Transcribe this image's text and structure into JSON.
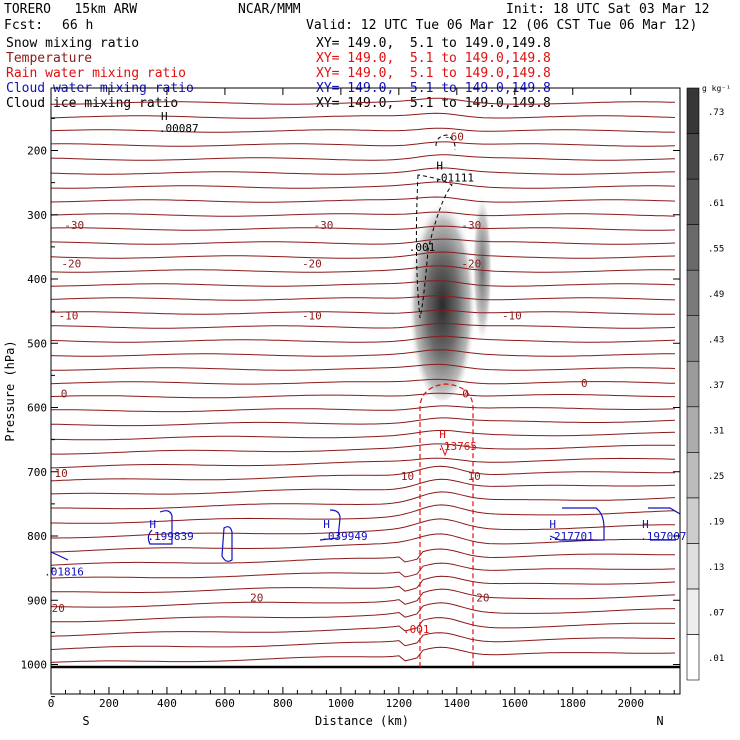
{
  "header": {
    "model": "TORERO   15km ARW",
    "center": "NCAR/MMM",
    "init": "Init: 18 UTC Sat 03 Mar 12",
    "fcst_label": "Fcst:",
    "fcst_value": "66 h",
    "valid": "Valid: 12 UTC Tue 06 Mar 12 (06 CST Tue 06 Mar 12)"
  },
  "legend": [
    {
      "label": "Snow mixing ratio",
      "color": "#000000",
      "xy": "XY= 149.0,  5.1 to 149.0,149.8"
    },
    {
      "label": "Temperature",
      "color": "#8b1a1a",
      "xy": "XY= 149.0,  5.1 to 149.0,149.8"
    },
    {
      "label": "Rain water mixing ratio",
      "color": "#e01010",
      "xy": "XY= 149.0,  5.1 to 149.0,149.8"
    },
    {
      "label": "Cloud water mixing ratio",
      "color": "#1010c0",
      "xy": "XY= 149.0,  5.1 to 149.0,149.8"
    },
    {
      "label": "Cloud ice mixing ratio",
      "color": "#000000",
      "xy": "XY= 149.0,  5.1 to 149.0,149.8"
    }
  ],
  "chart_data": {
    "type": "contour-cross-section",
    "xlabel": "Distance (km)",
    "ylabel": "Pressure (hPa)",
    "xlim": [
      0,
      2170
    ],
    "ylim": [
      1050,
      100
    ],
    "x_ticks": [
      0,
      200,
      400,
      600,
      800,
      1000,
      1200,
      1400,
      1600,
      1800,
      2000
    ],
    "y_ticks": [
      200,
      300,
      400,
      500,
      600,
      700,
      800,
      900,
      1000
    ],
    "direction_left": "S",
    "direction_right": "N",
    "colorbar": {
      "unit": "g kg⁻¹",
      "levels": [
        ".01",
        ".07",
        ".13",
        ".19",
        ".25",
        ".31",
        ".37",
        ".43",
        ".49",
        ".55",
        ".61",
        ".67",
        ".73"
      ]
    },
    "temperature_labels": [
      {
        "text": "-30",
        "x": 80,
        "p": 316
      },
      {
        "text": "-30",
        "x": 940,
        "p": 316
      },
      {
        "text": "-30",
        "x": 1450,
        "p": 316
      },
      {
        "text": "-20",
        "x": 70,
        "p": 376
      },
      {
        "text": "-20",
        "x": 900,
        "p": 376
      },
      {
        "text": "-20",
        "x": 1450,
        "p": 376
      },
      {
        "text": "-10",
        "x": 60,
        "p": 457
      },
      {
        "text": "-10",
        "x": 900,
        "p": 457
      },
      {
        "text": "-10",
        "x": 1590,
        "p": 457
      },
      {
        "text": "0",
        "x": 45,
        "p": 578
      },
      {
        "text": "0",
        "x": 1430,
        "p": 578
      },
      {
        "text": "0",
        "x": 1840,
        "p": 562
      },
      {
        "text": "10",
        "x": 35,
        "p": 702
      },
      {
        "text": "10",
        "x": 1230,
        "p": 707
      },
      {
        "text": "10",
        "x": 1460,
        "p": 707
      },
      {
        "text": "20",
        "x": 25,
        "p": 912
      },
      {
        "text": "20",
        "x": 710,
        "p": 896
      },
      {
        "text": "20",
        "x": 1490,
        "p": 896
      },
      {
        "text": "-60",
        "x": 1390,
        "p": 178
      }
    ],
    "maxima": [
      {
        "label": "H",
        "value": ".00087",
        "x": 400,
        "p": 165,
        "color": "#000000"
      },
      {
        "label": "H",
        "value": ".01111",
        "x": 1350,
        "p": 242,
        "color": "#000000"
      },
      {
        "label": "H",
        "value": ".13765",
        "x": 1360,
        "p": 660,
        "color": "#e01010"
      },
      {
        "label": "H",
        "value": ".199839",
        "x": 360,
        "p": 800,
        "color": "#1010c0"
      },
      {
        "label": "H",
        "value": ".039949",
        "x": 960,
        "p": 800,
        "color": "#1010c0"
      },
      {
        "label": "H",
        "value": ".217701",
        "x": 1740,
        "p": 800,
        "color": "#1010c0"
      },
      {
        "label": "H",
        "value": ".197007",
        "x": 2060,
        "p": 800,
        "color": "#1010c0"
      }
    ],
    "other_labels": [
      {
        "text": ".001",
        "x": 1280,
        "p": 350,
        "color": "#000000"
      },
      {
        "text": ".001",
        "x": 1260,
        "p": 945,
        "color": "#e01010"
      },
      {
        "text": ".01816",
        "x": 45,
        "p": 855,
        "color": "#1010c0"
      }
    ],
    "snow_shading": {
      "x_center": 1350,
      "p_top": 250,
      "p_bottom": 580,
      "max_value": ".73"
    }
  }
}
